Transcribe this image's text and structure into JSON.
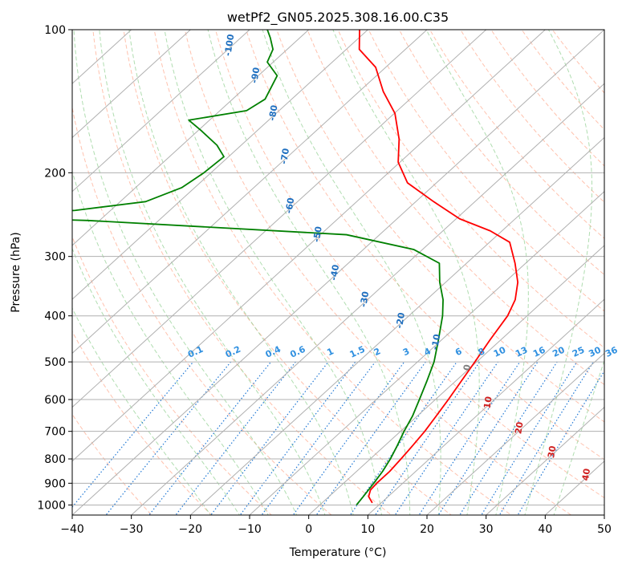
{
  "chart_data": {
    "type": "line",
    "title": "wetPf2_GN05.2025.308.16.00.C35",
    "xlabel": "Temperature (°C)",
    "ylabel": "Pressure (hPa)",
    "xlim": [
      -40,
      50
    ],
    "ylim": [
      1050,
      100
    ],
    "x_ticks": [
      -40,
      -30,
      -20,
      -10,
      0,
      10,
      20,
      30,
      40,
      50
    ],
    "y_ticks": [
      1000,
      900,
      800,
      700,
      600,
      500,
      400,
      300,
      200,
      100
    ],
    "x_tick_labels": [
      "−40",
      "−30",
      "−20",
      "−10",
      "0",
      "10",
      "20",
      "30",
      "40",
      "50"
    ],
    "y_tick_labels": [
      "1000",
      "900",
      "800",
      "700",
      "600",
      "500",
      "400",
      "300",
      "200",
      "100"
    ],
    "grid": true,
    "skew": 1,
    "series": [
      {
        "name": "Temperature",
        "color": "#ff0000",
        "points": [
          [
            8.5,
            990
          ],
          [
            6.7,
            960
          ],
          [
            5.8,
            930
          ],
          [
            5.6,
            900
          ],
          [
            5.6,
            850
          ],
          [
            5.2,
            800
          ],
          [
            4.7,
            750
          ],
          [
            4.1,
            700
          ],
          [
            3.2,
            650
          ],
          [
            2.2,
            600
          ],
          [
            1.0,
            550
          ],
          [
            -0.3,
            500
          ],
          [
            -1.8,
            450
          ],
          [
            -3.3,
            400
          ],
          [
            -5.0,
            370
          ],
          [
            -7.8,
            340
          ],
          [
            -11.8,
            310
          ],
          [
            -16.6,
            280
          ],
          [
            -22.0,
            265
          ],
          [
            -29.4,
            250
          ],
          [
            -37.0,
            230
          ],
          [
            -44.9,
            210
          ],
          [
            -50.3,
            190
          ],
          [
            -54.4,
            170
          ],
          [
            -59.9,
            150
          ],
          [
            -65.9,
            135
          ],
          [
            -71.7,
            120
          ],
          [
            -77.8,
            110
          ],
          [
            -81.4,
            100
          ]
        ]
      },
      {
        "name": "Dewpoint",
        "color": "#008000",
        "points": [
          [
            6.2,
            1000
          ],
          [
            5.8,
            960
          ],
          [
            5.1,
            900
          ],
          [
            4.4,
            850
          ],
          [
            3.4,
            800
          ],
          [
            2.1,
            750
          ],
          [
            0.6,
            700
          ],
          [
            -0.8,
            650
          ],
          [
            -2.7,
            600
          ],
          [
            -4.8,
            550
          ],
          [
            -7.2,
            500
          ],
          [
            -10.5,
            450
          ],
          [
            -14.3,
            400
          ],
          [
            -17.2,
            370
          ],
          [
            -21.0,
            340
          ],
          [
            -24.6,
            310
          ],
          [
            -31.5,
            290
          ],
          [
            -45.6,
            270
          ],
          [
            -92.0,
            252
          ],
          [
            -112.0,
            248
          ],
          [
            -96.0,
            240
          ],
          [
            -85.7,
            230
          ],
          [
            -82.2,
            215
          ],
          [
            -81.2,
            200
          ],
          [
            -80.8,
            185
          ],
          [
            -84.1,
            175
          ],
          [
            -89.5,
            163
          ],
          [
            -93.5,
            155
          ],
          [
            -85.5,
            148
          ],
          [
            -84.5,
            140
          ],
          [
            -86.8,
            125
          ],
          [
            -91.0,
            117
          ],
          [
            -92.4,
            110
          ],
          [
            -95.0,
            104
          ],
          [
            -97.0,
            100
          ]
        ]
      }
    ],
    "dry_adiabats_C": [
      -30,
      -20,
      -10,
      0,
      10,
      20,
      30,
      40,
      50,
      60,
      70,
      80,
      90,
      100,
      110,
      120,
      130,
      140,
      150,
      160
    ],
    "moist_adiabats_C": [
      -20,
      -15,
      -10,
      -5,
      0,
      5,
      10,
      15,
      20,
      25,
      30,
      35,
      40
    ],
    "mixing_ratios_gkg": [
      0.1,
      0.2,
      0.4,
      0.6,
      1,
      1.5,
      2,
      3,
      4,
      6,
      8,
      10,
      13,
      16,
      20,
      25,
      30,
      36
    ],
    "mixing_ratio_labels": [
      "0.1",
      "0.2",
      "0.4",
      "0.6",
      "1",
      "1.5",
      "2",
      "3",
      "4",
      "6",
      "8",
      "10",
      "13",
      "16",
      "20",
      "25",
      "30",
      "36"
    ],
    "blue_isotherm_labels": [
      "-100",
      "-90",
      "-80",
      "-70",
      "-60",
      "-50",
      "-40",
      "-30",
      "-20",
      "-10"
    ],
    "red_isotherm_labels": [
      "0",
      "10",
      "20",
      "30",
      "40"
    ],
    "colors": {
      "temperature": "#ff0000",
      "dewpoint": "#008000",
      "isotherm_grid": "#b0b0b0",
      "dry_adiabat": "#ff9a78",
      "moist_adiabat": "#8fcf8f",
      "mixing_ratio": "#1f77d4",
      "blue_label": "#2070c0",
      "red_label": "#d02020",
      "zero_label": "#808080",
      "tick_label_blue": "#3090e0"
    }
  }
}
